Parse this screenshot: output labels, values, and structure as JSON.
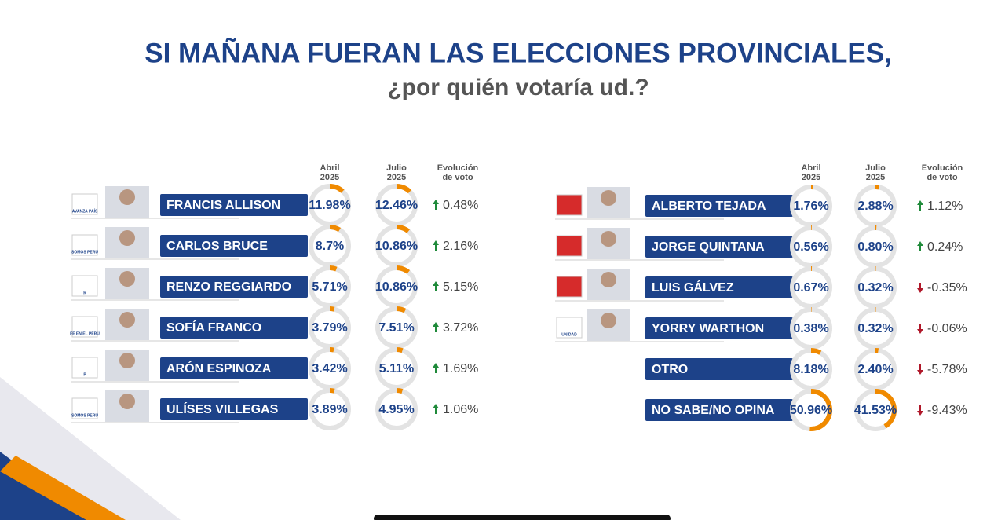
{
  "header": {
    "title": "SI MAÑANA FUERAN LAS ELECCIONES PROVINCIALES,",
    "subtitle": "¿por quién votaría ud.?"
  },
  "tables": [
    {
      "columns": [
        [
          "Abril",
          "2025"
        ],
        [
          "Julio",
          "2025"
        ],
        [
          "Evolución",
          "de voto"
        ]
      ],
      "rows": [
        {
          "logo": "AVANZA PAÍS",
          "name": "FRANCIS ALLISON",
          "april": 11.98,
          "april_label": "11.98%",
          "july": 12.46,
          "july_label": "12.46%",
          "change": 0.48,
          "change_label": "0.48%"
        },
        {
          "logo": "SOMOS PERÚ",
          "name": "CARLOS BRUCE",
          "april": 8.7,
          "april_label": "8.7%",
          "july": 10.86,
          "july_label": "10.86%",
          "change": 2.16,
          "change_label": "2.16%"
        },
        {
          "logo": "R",
          "name": "RENZO REGGIARDO",
          "april": 5.71,
          "april_label": "5.71%",
          "july": 10.86,
          "july_label": "10.86%",
          "change": 5.15,
          "change_label": "5.15%"
        },
        {
          "logo": "FE EN EL PERÚ",
          "name": "SOFÍA FRANCO",
          "april": 3.79,
          "april_label": "3.79%",
          "july": 7.51,
          "july_label": "7.51%",
          "change": 3.72,
          "change_label": "3.72%"
        },
        {
          "logo": "P",
          "name": "ARÓN ESPINOZA",
          "april": 3.42,
          "april_label": "3.42%",
          "july": 5.11,
          "july_label": "5.11%",
          "change": 1.69,
          "change_label": "1.69%"
        },
        {
          "logo": "SOMOS PERÚ",
          "name": "ULÍSES VILLEGAS",
          "april": 3.89,
          "april_label": "3.89%",
          "july": 4.95,
          "july_label": "4.95%",
          "change": 1.06,
          "change_label": "1.06%"
        }
      ]
    },
    {
      "columns": [
        [
          "Abril",
          "2025"
        ],
        [
          "Julio",
          "2025"
        ],
        [
          "Evolución",
          "de voto"
        ]
      ],
      "rows": [
        {
          "name": "ALBERTO TEJADA",
          "april": 1.76,
          "april_label": "1.76%",
          "july": 2.88,
          "july_label": "2.88%",
          "change": 1.12,
          "change_label": "1.12%"
        },
        {
          "name": "JORGE QUINTANA",
          "april": 0.56,
          "april_label": "0.56%",
          "july": 0.8,
          "july_label": "0.80%",
          "change": 0.24,
          "change_label": "0.24%"
        },
        {
          "name": "LUIS GÁLVEZ",
          "april": 0.67,
          "april_label": "0.67%",
          "july": 0.32,
          "july_label": "0.32%",
          "change": -0.35,
          "change_label": "-0.35%"
        },
        {
          "logo": "UNIDAD",
          "name": "YORRY WARTHON",
          "april": 0.38,
          "april_label": "0.38%",
          "july": 0.32,
          "july_label": "0.32%",
          "change": -0.06,
          "change_label": "-0.06%"
        },
        {
          "name": "OTRO",
          "april": 8.18,
          "april_label": "8.18%",
          "july": 2.4,
          "july_label": "2.40%",
          "change": -5.78,
          "change_label": "-5.78%"
        },
        {
          "name": "NO SABE/NO OPINA",
          "april": 50.96,
          "april_label": "50.96%",
          "july": 41.53,
          "july_label": "41.53%",
          "change": -9.43,
          "change_label": "-9.43%"
        }
      ]
    }
  ]
}
